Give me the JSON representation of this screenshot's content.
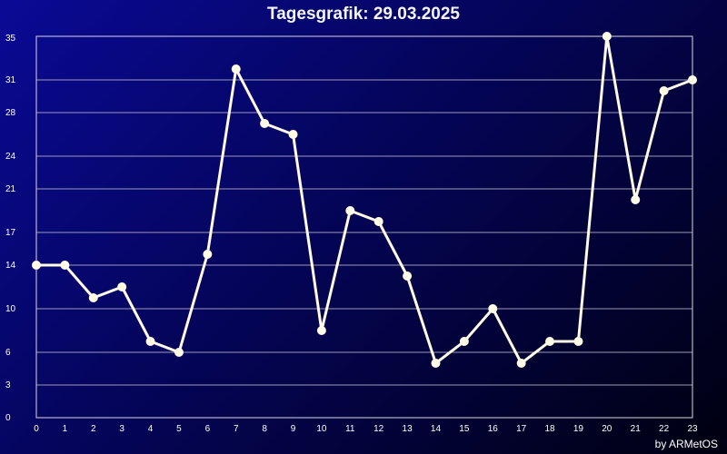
{
  "chart_data": {
    "type": "line",
    "title": "Tagesgrafik: 29.03.2025",
    "xlabel": "",
    "ylabel": "",
    "x": [
      0,
      1,
      2,
      3,
      4,
      5,
      6,
      7,
      8,
      9,
      10,
      11,
      12,
      13,
      14,
      15,
      16,
      17,
      18,
      19,
      20,
      21,
      22,
      23
    ],
    "y": [
      14,
      14,
      11,
      12,
      7,
      6,
      15,
      32,
      27,
      26,
      8,
      19,
      18,
      13,
      5,
      7,
      10,
      5,
      7,
      7,
      35,
      20,
      30,
      31
    ],
    "xlim": [
      0,
      23
    ],
    "ylim": [
      0,
      35
    ],
    "yticks": [
      0,
      3,
      6,
      10,
      14,
      17,
      21,
      24,
      28,
      31,
      35
    ],
    "xticks": [
      0,
      1,
      2,
      3,
      4,
      5,
      6,
      7,
      8,
      9,
      10,
      11,
      12,
      13,
      14,
      15,
      16,
      17,
      18,
      19,
      20,
      21,
      22,
      23
    ],
    "grid": "horizontal",
    "line_color": "#fffbe6"
  },
  "footer": {
    "credit": "by ARMetOS"
  }
}
